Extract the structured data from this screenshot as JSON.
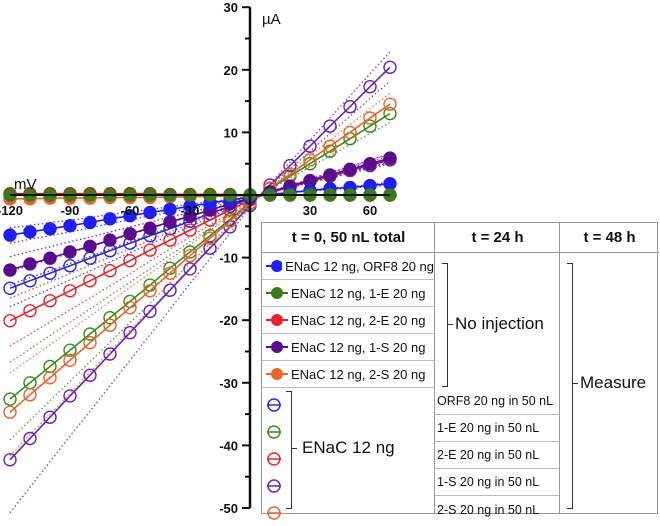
{
  "chart_data": {
    "type": "line",
    "xlabel": "mV",
    "ylabel": "µA",
    "xlim": [
      -120,
      70
    ],
    "ylim": [
      -50,
      30
    ],
    "x_ticks": [
      -120,
      -90,
      -60,
      -30,
      30,
      60
    ],
    "y_ticks": [
      30,
      20,
      10,
      -10,
      -20,
      -30,
      -40,
      -50
    ],
    "grid": false,
    "x": [
      -120,
      -110,
      -100,
      -90,
      -80,
      -70,
      -60,
      -50,
      -40,
      -30,
      -20,
      -10,
      0,
      10,
      20,
      30,
      40,
      50,
      60,
      70
    ],
    "series": [
      {
        "name": "ENaC 12 ng, ORF8 in 50 nL",
        "color": "#2a2ad8",
        "marker": "open",
        "values": [
          -14.9,
          -13.7,
          -12.5,
          -11.3,
          -10.1,
          -8.9,
          -7.7,
          -6.5,
          -5.4,
          -4.2,
          -3.0,
          -1.8,
          -0.6,
          0.4,
          1.3,
          2.2,
          3.0,
          3.9,
          4.7,
          5.6
        ]
      },
      {
        "name": "ENaC 12 ng, 1-E in 50 nL",
        "color": "#3c8a1e",
        "marker": "open",
        "values": [
          -32.6,
          -30.0,
          -27.4,
          -24.8,
          -22.2,
          -19.6,
          -17.0,
          -14.4,
          -11.7,
          -9.1,
          -6.5,
          -3.9,
          -1.3,
          1.0,
          3.0,
          5.0,
          7.0,
          9.0,
          11.0,
          13.0
        ]
      },
      {
        "name": "ENaC 12 ng, 2-E in 50 nL",
        "color": "#e3242b",
        "marker": "open",
        "values": [
          -20.1,
          -18.5,
          -16.9,
          -15.3,
          -13.7,
          -12.1,
          -10.5,
          -8.8,
          -7.2,
          -5.6,
          -4.0,
          -2.4,
          -0.8,
          0.4,
          1.3,
          2.2,
          3.1,
          4.0,
          4.9,
          5.8
        ]
      },
      {
        "name": "ENaC 12 ng, 1-S in 50 nL",
        "color": "#6a22b4",
        "marker": "open",
        "values": [
          -42.3,
          -38.9,
          -35.5,
          -32.1,
          -28.8,
          -25.4,
          -22.0,
          -18.6,
          -15.2,
          -11.8,
          -8.5,
          -5.1,
          -1.7,
          1.6,
          4.7,
          7.8,
          11.0,
          14.1,
          17.3,
          20.4
        ]
      },
      {
        "name": "ENaC 12 ng, 2-S in 50 nL",
        "color": "#e8642c",
        "marker": "open",
        "values": [
          -34.7,
          -31.9,
          -29.2,
          -26.4,
          -23.6,
          -20.8,
          -18.0,
          -15.3,
          -12.5,
          -9.7,
          -6.9,
          -4.2,
          -1.4,
          1.1,
          3.3,
          5.6,
          7.8,
          10.0,
          12.3,
          14.5
        ]
      },
      {
        "name": "ENaC 12 ng, 2-S 20 ng",
        "color": "#e8642c",
        "marker": "filled",
        "values": [
          -0.6,
          -0.6,
          -0.5,
          -0.5,
          -0.5,
          -0.4,
          -0.4,
          -0.4,
          -0.3,
          -0.3,
          -0.2,
          -0.2,
          -0.1,
          0,
          0,
          0,
          0,
          0,
          0,
          0
        ]
      },
      {
        "name": "ENaC 12 ng, 2-E 20 ng",
        "color": "#c4161c",
        "marker": "filled",
        "values": [
          0.2,
          0.2,
          0.2,
          0.2,
          0.2,
          0.2,
          0.2,
          0.2,
          0.1,
          0.1,
          0.1,
          0.1,
          0,
          0,
          0,
          0,
          0,
          0,
          0,
          0
        ]
      },
      {
        "name": "ENaC 12 ng, 1-S 20 ng",
        "color": "#5a0c8e",
        "marker": "filled",
        "values": [
          -12.0,
          -11.0,
          -10.1,
          -9.1,
          -8.2,
          -7.2,
          -6.2,
          -5.3,
          -4.3,
          -3.4,
          -2.4,
          -1.4,
          -0.5,
          0.5,
          1.4,
          2.3,
          3.2,
          4.1,
          5.0,
          5.9
        ]
      },
      {
        "name": "ENaC 12 ng, ORF8 20 ng",
        "color": "#1f1ff5",
        "marker": "filled",
        "values": [
          -6.4,
          -5.9,
          -5.4,
          -4.9,
          -4.4,
          -3.8,
          -3.3,
          -2.8,
          -2.3,
          -1.8,
          -1.3,
          -0.8,
          -0.3,
          0.1,
          0.4,
          0.7,
          1.0,
          1.2,
          1.5,
          1.8
        ]
      },
      {
        "name": "ENaC 12 ng, 1-E 20 ng",
        "color": "#3c7a1a",
        "marker": "filled",
        "values": [
          0,
          0,
          0,
          0,
          0,
          0,
          0,
          0,
          0,
          0,
          0,
          0,
          0,
          0,
          0,
          0,
          0,
          0,
          0,
          0
        ]
      }
    ],
    "error_bands": "dotted"
  },
  "legend": {
    "headers": [
      "t = 0, 50 nL total",
      "t = 24 h",
      "t = 48 h"
    ],
    "top_rows": [
      {
        "label": "ENaC 12 ng, ORF8 20 ng",
        "color": "#1f1ff5"
      },
      {
        "label": "ENaC 12 ng, 1-E 20 ng",
        "color": "#3c7a1a"
      },
      {
        "label": "ENaC 12 ng, 2-E 20 ng",
        "color": "#e3242b"
      },
      {
        "label": "ENaC 12 ng, 1-S 20 ng",
        "color": "#5a0c8e"
      },
      {
        "label": "ENaC 12 ng, 2-S 20 ng",
        "color": "#e8642c"
      }
    ],
    "no_injection": "No injection",
    "enac_label": "ENaC 12 ng",
    "bottom_rows": [
      {
        "label": "ORF8 20 ng in 50 nL",
        "color": "#2a2ad8"
      },
      {
        "label": "1-E 20 ng in 50 nL",
        "color": "#3c8a1e"
      },
      {
        "label": "2-E 20 ng in 50 nL",
        "color": "#e3242b"
      },
      {
        "label": "1-S 20 ng in 50 nL",
        "color": "#6a22b4"
      },
      {
        "label": "2-S 20 ng in 50 nL",
        "color": "#e8642c"
      }
    ],
    "measure": "Measure"
  }
}
